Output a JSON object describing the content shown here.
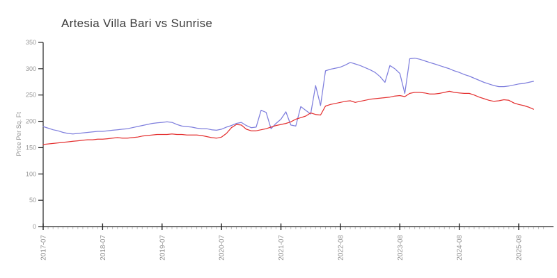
{
  "title": "Artesia Villa Bari vs Sunrise",
  "colors": {
    "series_blue": "#7e7edd",
    "series_red": "#e43030",
    "axis": "#222222",
    "tick_label": "#949494",
    "minor_tick": "#bbbbbb",
    "title_text": "#3c3c3c"
  },
  "chart_data": {
    "type": "line",
    "title": "Artesia Villa Bari vs Sunrise",
    "xlabel": "",
    "ylabel": "Price Per Sq. Ft",
    "ylim": [
      0,
      350
    ],
    "y_ticks": [
      0,
      50,
      100,
      150,
      200,
      250,
      300,
      350
    ],
    "x_tick_labels": [
      "2017-07",
      "2018-07",
      "2019-07",
      "2020-07",
      "2021-07",
      "2022-08",
      "2023-08",
      "2024-08",
      "2025-08"
    ],
    "x_tick_indices": [
      0,
      12,
      24,
      36,
      48,
      60,
      72,
      84,
      96
    ],
    "n_points": 100,
    "grid": false,
    "legend_position": "none",
    "series": [
      {
        "name": "Artesia Villa Bari",
        "color": "#7e7edd",
        "values": [
          190,
          187,
          184,
          182,
          179,
          177,
          176,
          177,
          178,
          179,
          180,
          181,
          181,
          182,
          183,
          184,
          185,
          186,
          188,
          190,
          192,
          194,
          196,
          197,
          198,
          199,
          198,
          194,
          191,
          190,
          189,
          187,
          186,
          186,
          184,
          183,
          185,
          189,
          192,
          196,
          198,
          192,
          188,
          189,
          221,
          217,
          186,
          196,
          204,
          218,
          193,
          191,
          228,
          221,
          214,
          268,
          230,
          296,
          299,
          301,
          303,
          307,
          312,
          309,
          306,
          302,
          298,
          293,
          285,
          274,
          306,
          300,
          291,
          253,
          319,
          320,
          318,
          315,
          312,
          309,
          306,
          303,
          300,
          296,
          293,
          289,
          286,
          282,
          278,
          274,
          271,
          268,
          266,
          266,
          267,
          269,
          271,
          272,
          274,
          276
        ]
      },
      {
        "name": "Sunrise",
        "color": "#e43030",
        "values": [
          156,
          157,
          158,
          159,
          160,
          161,
          162,
          163,
          164,
          165,
          165,
          166,
          166,
          167,
          168,
          169,
          168,
          168,
          169,
          170,
          172,
          173,
          174,
          175,
          175,
          175,
          176,
          175,
          175,
          174,
          174,
          174,
          173,
          171,
          169,
          168,
          170,
          177,
          188,
          194,
          193,
          185,
          182,
          182,
          184,
          186,
          189,
          192,
          194,
          196,
          199,
          204,
          207,
          210,
          216,
          213,
          212,
          229,
          232,
          234,
          236,
          238,
          239,
          236,
          238,
          240,
          242,
          243,
          244,
          245,
          246,
          248,
          249,
          247,
          253,
          255,
          255,
          254,
          252,
          252,
          253,
          255,
          257,
          255,
          254,
          253,
          253,
          250,
          246,
          243,
          240,
          238,
          239,
          241,
          240,
          235,
          232,
          230,
          227,
          223
        ]
      }
    ]
  }
}
